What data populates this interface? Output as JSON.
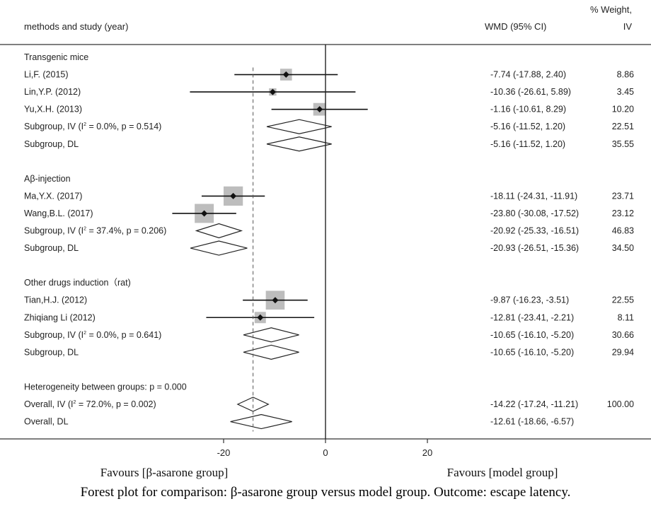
{
  "header": {
    "study_col": "methods and study (year)",
    "effect_col": "WMD (95% CI)",
    "weight_col_line1": "% Weight,",
    "weight_col_line2": "IV"
  },
  "footer": {
    "favours_left": "Favours [β-asarone group]",
    "favours_right": "Favours [model group]"
  },
  "caption": "Forest plot for comparison: β-asarone group versus model group. Outcome: escape latency.",
  "chart_data": {
    "type": "forest",
    "x_ticks": [
      -20,
      0,
      20
    ],
    "xlim": [
      -41,
      37
    ],
    "reference_line": 0,
    "dashed_line": -14.22,
    "rows": [
      {
        "kind": "group",
        "label": "Transgenic mice"
      },
      {
        "kind": "study",
        "label": "Li,F. (2015)",
        "est": -7.74,
        "lo": -17.88,
        "hi": 2.4,
        "ci_text": "-7.74 (-17.88, 2.40)",
        "weight": "8.86",
        "box": 8.86
      },
      {
        "kind": "study",
        "label": "Lin,Y.P. (2012)",
        "est": -10.36,
        "lo": -26.61,
        "hi": 5.89,
        "ci_text": "-10.36 (-26.61, 5.89)",
        "weight": "3.45",
        "box": 3.45
      },
      {
        "kind": "study",
        "label": "Yu,X.H. (2013)",
        "est": -1.16,
        "lo": -10.61,
        "hi": 8.29,
        "ci_text": "-1.16 (-10.61, 8.29)",
        "weight": "10.20",
        "box": 10.2
      },
      {
        "kind": "diamond",
        "label": "Subgroup, IV (I",
        "label_sup": "2",
        "label_after": " = 0.0%, p = 0.514)",
        "est": -5.16,
        "lo": -11.52,
        "hi": 1.2,
        "ci_text": "-5.16 (-11.52, 1.20)",
        "weight": "22.51"
      },
      {
        "kind": "diamond",
        "label": "Subgroup, DL",
        "est": -5.16,
        "lo": -11.52,
        "hi": 1.2,
        "ci_text": "-5.16 (-11.52, 1.20)",
        "weight": "35.55"
      },
      {
        "kind": "gap"
      },
      {
        "kind": "group",
        "label": "Aβ-injection"
      },
      {
        "kind": "study",
        "label": "Ma,Y.X. (2017)",
        "est": -18.11,
        "lo": -24.31,
        "hi": -11.91,
        "ci_text": "-18.11 (-24.31, -11.91)",
        "weight": "23.71",
        "box": 23.71
      },
      {
        "kind": "study",
        "label": "Wang,B.L. (2017)",
        "est": -23.8,
        "lo": -30.08,
        "hi": -17.52,
        "ci_text": "-23.80 (-30.08, -17.52)",
        "weight": "23.12",
        "box": 23.12
      },
      {
        "kind": "diamond",
        "label": "Subgroup, IV (I",
        "label_sup": "2",
        "label_after": " = 37.4%, p = 0.206)",
        "est": -20.92,
        "lo": -25.33,
        "hi": -16.51,
        "ci_text": "-20.92 (-25.33, -16.51)",
        "weight": "46.83"
      },
      {
        "kind": "diamond",
        "label": "Subgroup, DL",
        "est": -20.93,
        "lo": -26.51,
        "hi": -15.36,
        "ci_text": "-20.93 (-26.51, -15.36)",
        "weight": "34.50"
      },
      {
        "kind": "gap"
      },
      {
        "kind": "group",
        "label": "Other drugs induction（rat)"
      },
      {
        "kind": "study",
        "label": "Tian,H.J. (2012)",
        "est": -9.87,
        "lo": -16.23,
        "hi": -3.51,
        "ci_text": "-9.87 (-16.23, -3.51)",
        "weight": "22.55",
        "box": 22.55
      },
      {
        "kind": "study",
        "label": "Zhiqiang Li (2012)",
        "est": -12.81,
        "lo": -23.41,
        "hi": -2.21,
        "ci_text": "-12.81 (-23.41, -2.21)",
        "weight": "8.11",
        "box": 8.11
      },
      {
        "kind": "diamond",
        "label": "Subgroup, IV (I",
        "label_sup": "2",
        "label_after": " = 0.0%, p = 0.641)",
        "est": -10.65,
        "lo": -16.1,
        "hi": -5.2,
        "ci_text": "-10.65 (-16.10, -5.20)",
        "weight": "30.66"
      },
      {
        "kind": "diamond",
        "label": "Subgroup, DL",
        "est": -10.65,
        "lo": -16.1,
        "hi": -5.2,
        "ci_text": "-10.65 (-16.10, -5.20)",
        "weight": "29.94"
      },
      {
        "kind": "gap"
      },
      {
        "kind": "text",
        "label": "Heterogeneity between groups: p = 0.000"
      },
      {
        "kind": "diamond",
        "label": "Overall, IV (I",
        "label_sup": "2",
        "label_after": " = 72.0%, p = 0.002)",
        "est": -14.22,
        "lo": -17.24,
        "hi": -11.21,
        "ci_text": "-14.22 (-17.24, -11.21)",
        "weight": "100.00"
      },
      {
        "kind": "diamond",
        "label": "Overall, DL",
        "est": -12.61,
        "lo": -18.66,
        "hi": -6.57,
        "ci_text": "-12.61 (-18.66, -6.57)",
        "weight": ""
      }
    ]
  }
}
